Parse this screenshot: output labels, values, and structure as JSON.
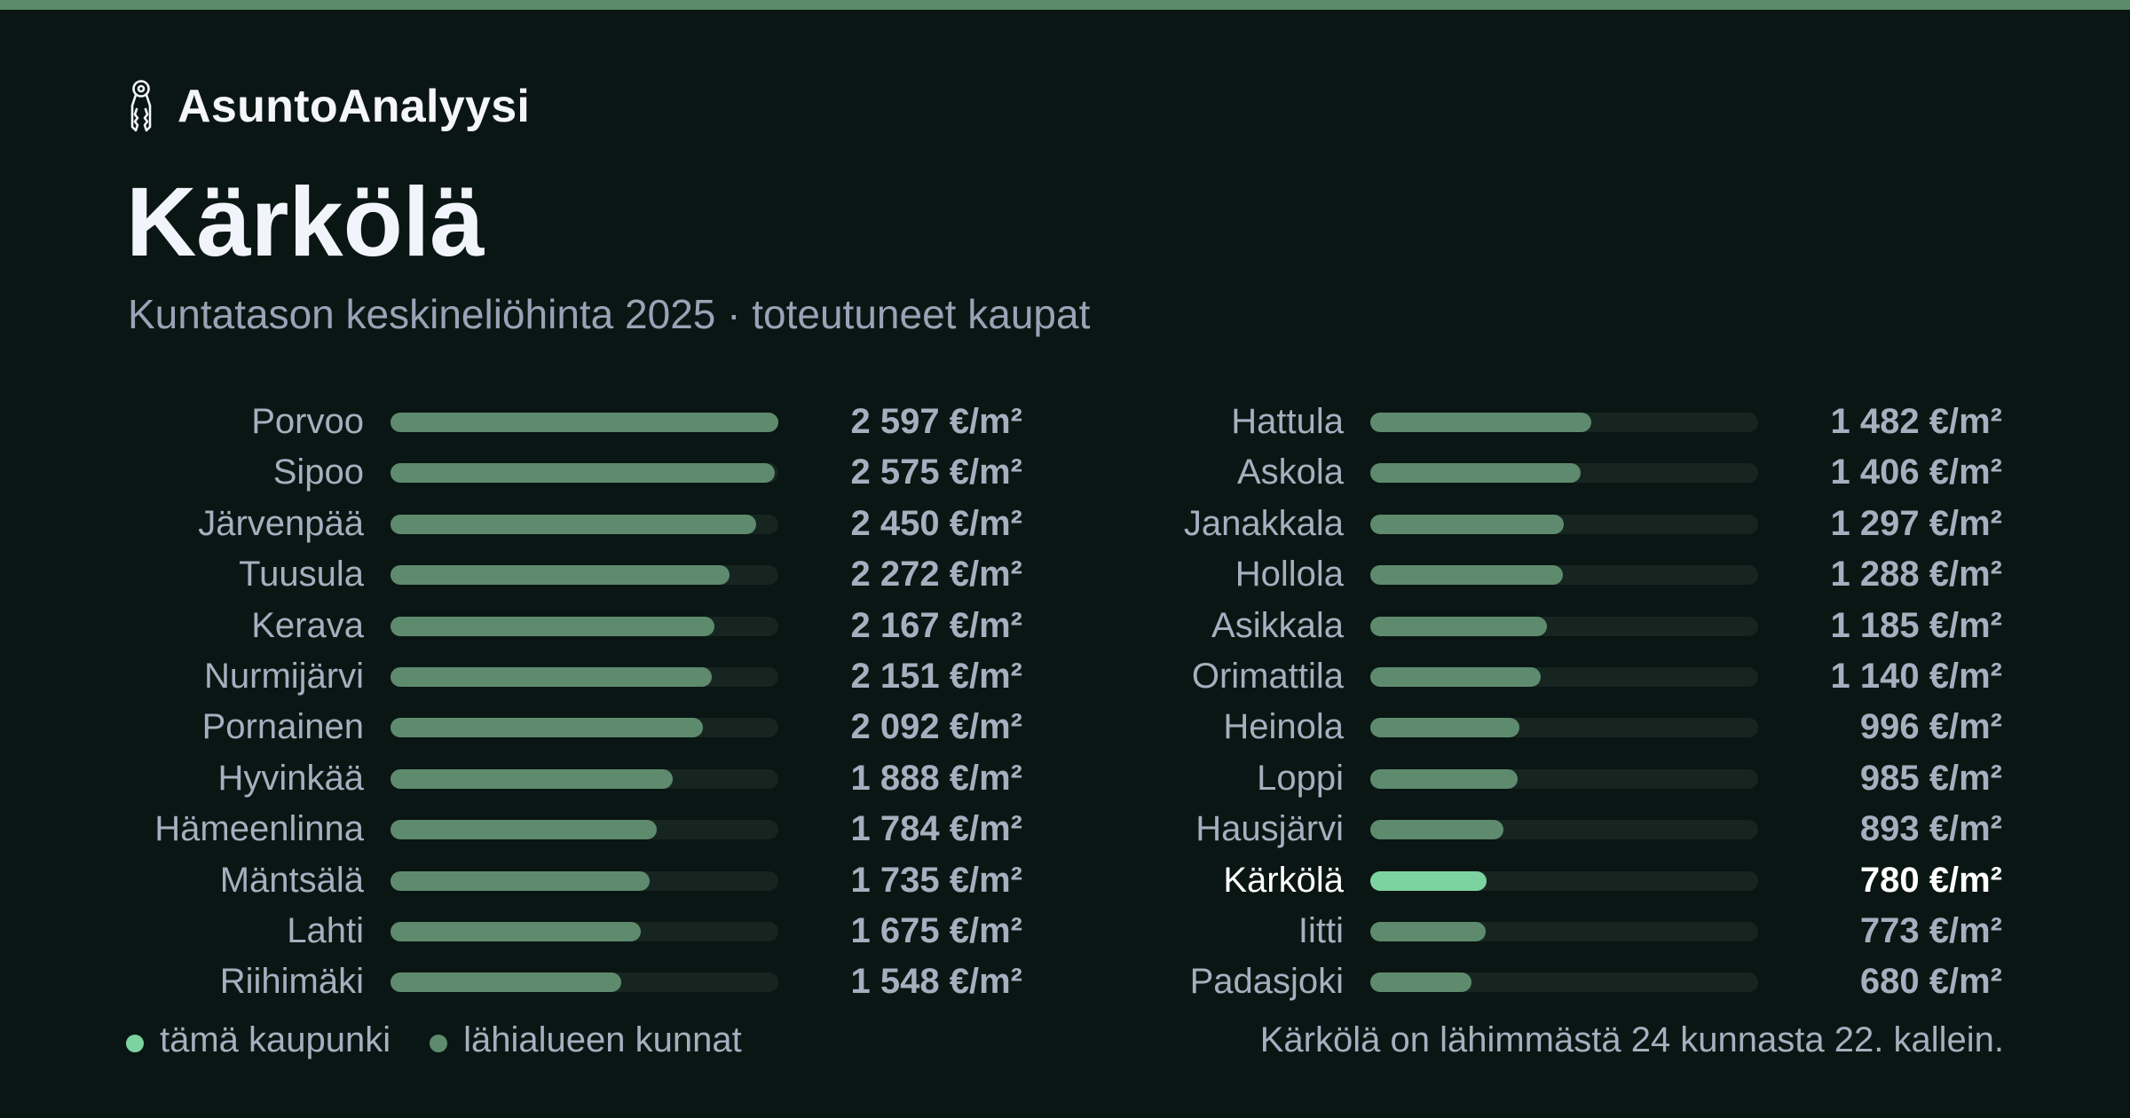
{
  "brand": {
    "name": "AsuntoAnalyysi",
    "icon": "keys-icon"
  },
  "colors": {
    "background": "#0a1613",
    "bar": "#5e8b6e",
    "highlight": "#7dd3a0",
    "track": "#172521",
    "top_stripe": "#5a8a69"
  },
  "chart_data": {
    "type": "bar",
    "orientation": "horizontal",
    "title": "Kärkölä",
    "subtitle": "Kuntatason keskineliöhinta 2025 · toteutuneet kaupat",
    "unit": "€/m²",
    "max_value": 2597,
    "highlight": "Kärkölä",
    "columns": [
      {
        "rows": [
          {
            "name": "Porvoo",
            "value": 2597,
            "label": "2 597 €/m²"
          },
          {
            "name": "Sipoo",
            "value": 2575,
            "label": "2 575 €/m²"
          },
          {
            "name": "Järvenpää",
            "value": 2450,
            "label": "2 450 €/m²"
          },
          {
            "name": "Tuusula",
            "value": 2272,
            "label": "2 272 €/m²"
          },
          {
            "name": "Kerava",
            "value": 2167,
            "label": "2 167 €/m²"
          },
          {
            "name": "Nurmijärvi",
            "value": 2151,
            "label": "2 151 €/m²"
          },
          {
            "name": "Pornainen",
            "value": 2092,
            "label": "2 092 €/m²"
          },
          {
            "name": "Hyvinkää",
            "value": 1888,
            "label": "1 888 €/m²"
          },
          {
            "name": "Hämeenlinna",
            "value": 1784,
            "label": "1 784 €/m²"
          },
          {
            "name": "Mäntsälä",
            "value": 1735,
            "label": "1 735 €/m²"
          },
          {
            "name": "Lahti",
            "value": 1675,
            "label": "1 675 €/m²"
          },
          {
            "name": "Riihimäki",
            "value": 1548,
            "label": "1 548 €/m²"
          }
        ]
      },
      {
        "rows": [
          {
            "name": "Hattula",
            "value": 1482,
            "label": "1 482 €/m²"
          },
          {
            "name": "Askola",
            "value": 1406,
            "label": "1 406 €/m²"
          },
          {
            "name": "Janakkala",
            "value": 1297,
            "label": "1 297 €/m²"
          },
          {
            "name": "Hollola",
            "value": 1288,
            "label": "1 288 €/m²"
          },
          {
            "name": "Asikkala",
            "value": 1185,
            "label": "1 185 €/m²"
          },
          {
            "name": "Orimattila",
            "value": 1140,
            "label": "1 140 €/m²"
          },
          {
            "name": "Heinola",
            "value": 996,
            "label": "996 €/m²"
          },
          {
            "name": "Loppi",
            "value": 985,
            "label": "985 €/m²"
          },
          {
            "name": "Hausjärvi",
            "value": 893,
            "label": "893 €/m²"
          },
          {
            "name": "Kärkölä",
            "value": 780,
            "label": "780 €/m²"
          },
          {
            "name": "Iitti",
            "value": 773,
            "label": "773 €/m²"
          },
          {
            "name": "Padasjoki",
            "value": 680,
            "label": "680 €/m²"
          }
        ]
      }
    ],
    "legend": [
      {
        "label": "tämä kaupunki",
        "color": "#7dd3a0"
      },
      {
        "label": "lähialueen kunnat",
        "color": "#5e8b6e"
      }
    ]
  },
  "footnote": "Kärkölä on lähimmästä 24 kunnasta 22. kallein."
}
